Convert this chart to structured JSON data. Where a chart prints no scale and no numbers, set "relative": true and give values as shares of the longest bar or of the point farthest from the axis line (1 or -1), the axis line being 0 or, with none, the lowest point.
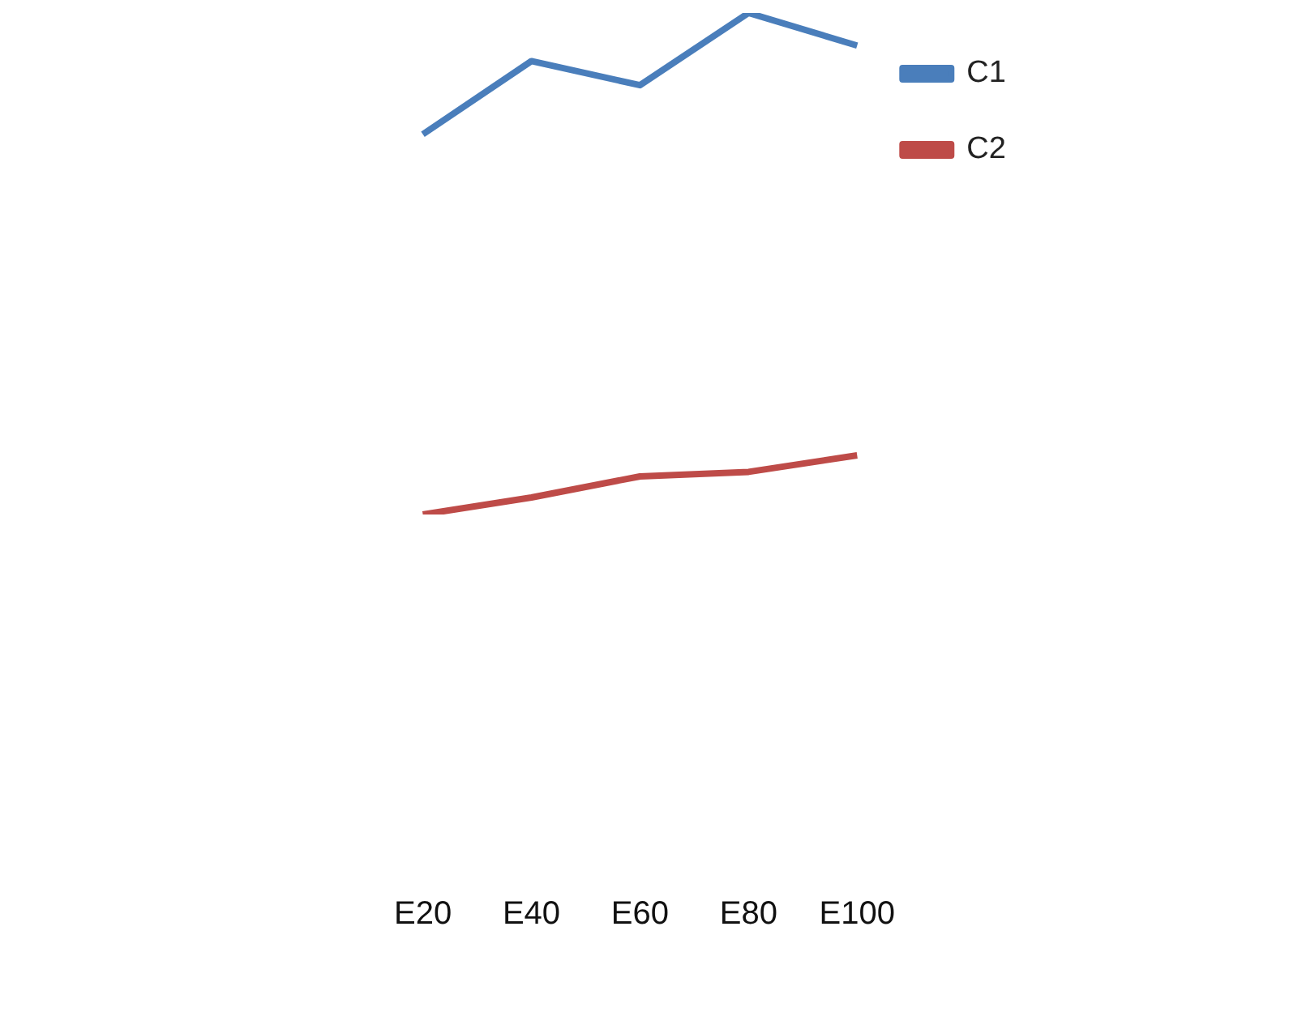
{
  "chart_data": {
    "type": "line",
    "relative": true,
    "categories": [
      "E20",
      "E40",
      "E60",
      "E80",
      "E100"
    ],
    "series": [
      {
        "name": "C1",
        "color": "#4a7ebb",
        "values": [
          0.758,
          0.904,
          0.856,
          1,
          0.935
        ]
      },
      {
        "name": "C2",
        "color": "#be4b48",
        "values": [
          0,
          0.034,
          0.076,
          0.085,
          0.118
        ]
      }
    ],
    "legend": "top right",
    "grid": false,
    "marker": "none",
    "line_style": "solid"
  }
}
